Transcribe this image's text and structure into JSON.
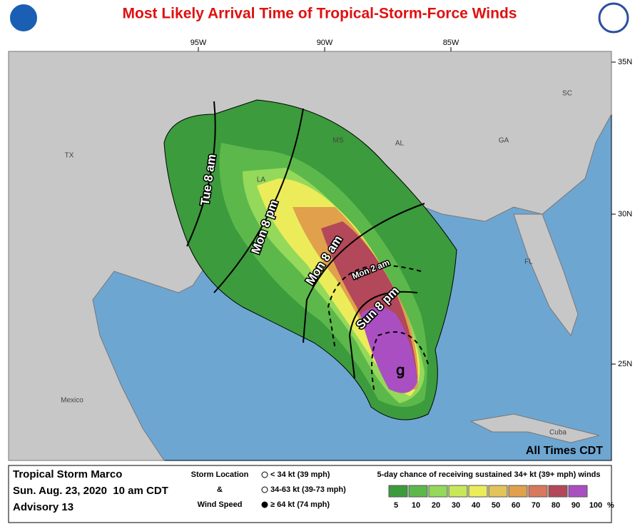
{
  "title": "Most Likely Arrival Time of Tropical-Storm-Force Winds",
  "map": {
    "lon_labels": [
      "95W",
      "90W",
      "85W"
    ],
    "lat_labels": [
      "35N",
      "30N",
      "25N"
    ],
    "places": [
      "TX",
      "LA",
      "MS",
      "AL",
      "GA",
      "SC",
      "FL",
      "Mexico",
      "Cuba"
    ],
    "time_labels": [
      "Tue  8  am",
      "Mon  8  pm",
      "Mon  8 am",
      "Mon   2   am",
      "Sun   8   pm"
    ],
    "note": "All Times CDT"
  },
  "info": {
    "storm": "Tropical Storm Marco",
    "date": "Sun. Aug. 23, 2020  10 am CDT",
    "advisory": "Advisory 13"
  },
  "storm_key": {
    "title_1": "Storm Location",
    "joiner": "&",
    "title_2": "Wind Speed",
    "items": [
      "< 34 kt (39 mph)",
      "34-63 kt (39-73 mph)",
      "≥ 64 kt (74 mph)"
    ]
  },
  "scale": {
    "title": "5-day chance of receiving sustained 34+ kt (39+ mph) winds",
    "ticks": [
      5,
      10,
      20,
      30,
      40,
      50,
      60,
      70,
      80,
      90,
      100
    ],
    "unit": "%",
    "colors": [
      "#3c9b3c",
      "#5cb84a",
      "#94d95a",
      "#c8e85a",
      "#ecec5a",
      "#e3c45a",
      "#e0a04c",
      "#d8785c",
      "#b2485a",
      "#a94fc2"
    ]
  }
}
